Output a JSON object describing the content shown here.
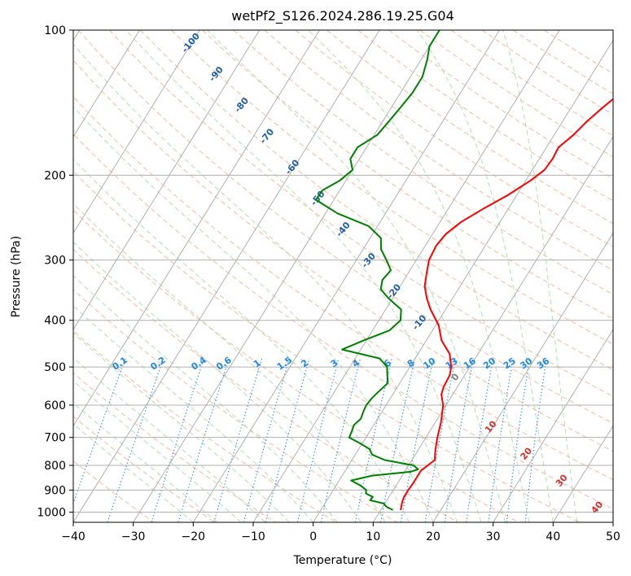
{
  "chart_data": {
    "type": "line",
    "title": "wetPf2_S126.2024.286.19.25.G04",
    "xlabel": "Temperature (°C)",
    "ylabel": "Pressure (hPa)",
    "xlim": [
      -40,
      50
    ],
    "ylim": [
      1050,
      100
    ],
    "y_scale": "log",
    "grid": true,
    "x_ticks": [
      -40,
      -30,
      -20,
      -10,
      0,
      10,
      20,
      30,
      40,
      50
    ],
    "y_ticks": [
      100,
      200,
      300,
      400,
      500,
      600,
      700,
      800,
      900,
      1000
    ],
    "skew_per_decade": 50,
    "colors": {
      "temperature": "#ff0000",
      "dewpoint": "#008000",
      "isotherm": "#b0b0b0",
      "dry_adiabat": "#f4a582",
      "moist_adiabat": "#9fd89f",
      "mixing_ratio": "#1e88e5",
      "theta_label": "#1f5fa8",
      "mix_label": "#1e88e5",
      "warm_label": "#d32f2f",
      "zero_label": "#808080",
      "saturation_curve": "#d2b48c"
    },
    "series": [
      {
        "name": "Temperature",
        "pressure": [
          990,
          970,
          950,
          930,
          900,
          870,
          840,
          820,
          800,
          780,
          760,
          740,
          700,
          650,
          600,
          570,
          550,
          520,
          500,
          470,
          440,
          410,
          380,
          360,
          340,
          320,
          300,
          280,
          265,
          250,
          235,
          220,
          205,
          195,
          185,
          175,
          165,
          155,
          145,
          135,
          125,
          115,
          108,
          100
        ],
        "temperature": [
          13.3,
          13.0,
          12.7,
          12.5,
          12.5,
          12.6,
          12.6,
          12.6,
          13.2,
          13.8,
          13.3,
          12.8,
          11.9,
          10.9,
          9.5,
          8.1,
          7.7,
          7.5,
          6.9,
          5.3,
          2.5,
          0.5,
          -2.5,
          -4.3,
          -5.9,
          -6.9,
          -7.9,
          -8.2,
          -7.8,
          -6.5,
          -4.2,
          -1.5,
          0.8,
          2.0,
          2.2,
          2.0,
          3.2,
          4.0,
          5.2,
          6.7,
          7.3,
          7.8,
          8.5,
          10.1
        ]
      },
      {
        "name": "Dewpoint",
        "pressure": [
          990,
          975,
          960,
          945,
          930,
          915,
          900,
          880,
          860,
          840,
          825,
          815,
          800,
          780,
          760,
          740,
          720,
          700,
          680,
          660,
          640,
          620,
          600,
          580,
          560,
          540,
          520,
          500,
          480,
          460,
          440,
          420,
          400,
          380,
          360,
          345,
          330,
          315,
          300,
          285,
          270,
          255,
          240,
          225,
          215,
          205,
          195,
          185,
          175,
          165,
          155,
          145,
          135,
          125,
          115,
          108,
          100
        ],
        "temperature": [
          12.0,
          10.6,
          9.8,
          7.2,
          7.3,
          5.8,
          5.5,
          4.0,
          2.0,
          5.0,
          11.0,
          12.0,
          10.8,
          5.5,
          2.8,
          1.8,
          -0.4,
          -2.8,
          -3.0,
          -3.3,
          -2.8,
          -3.1,
          -3.3,
          -3.1,
          -2.6,
          -2.0,
          -2.9,
          -3.8,
          -5.9,
          -13.1,
          -10.4,
          -7.2,
          -6.4,
          -7.4,
          -10.7,
          -12.9,
          -13.6,
          -13.2,
          -15.0,
          -17.0,
          -18.2,
          -21.5,
          -28.0,
          -33.0,
          -32.9,
          -31.0,
          -30.0,
          -31.5,
          -31.5,
          -29.5,
          -29.0,
          -28.5,
          -28.0,
          -28.0,
          -29.0,
          -30.0,
          -30.0
        ]
      }
    ],
    "theta_labels": [
      "-100",
      "-90",
      "-80",
      "-70",
      "-60",
      "-50",
      "-40",
      "-30",
      "-20",
      "-10"
    ],
    "mixing_ratio_labels": [
      "0.1",
      "0.2",
      "0.4",
      "0.6",
      "1",
      "1.5",
      "2",
      "3",
      "4",
      "6",
      "8",
      "10",
      "13",
      "16",
      "20",
      "25",
      "30",
      "36"
    ],
    "warm_labels": [
      "0",
      "10",
      "20",
      "30",
      "40"
    ]
  }
}
